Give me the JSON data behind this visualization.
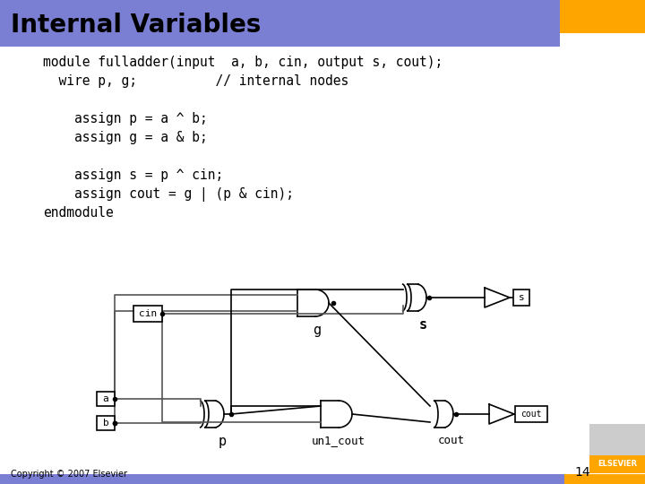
{
  "title": "Internal Variables",
  "title_bg_color": "#7B7FD4",
  "orange_color": "#FFA500",
  "bg_color": "#FFFFFF",
  "code_lines": [
    "module fulladder(input  a, b, cin, output s, cout);",
    "  wire p, g;          // internal nodes",
    "",
    "    assign p = a ^ b;",
    "    assign g = a & b;",
    "",
    "    assign s = p ^ cin;",
    "    assign cout = g | (p & cin);",
    "endmodule"
  ],
  "footer_text": "Copyright © 2007 Elsevier",
  "page_number": "14",
  "title_fontsize": 20,
  "code_fontsize": 10.5
}
